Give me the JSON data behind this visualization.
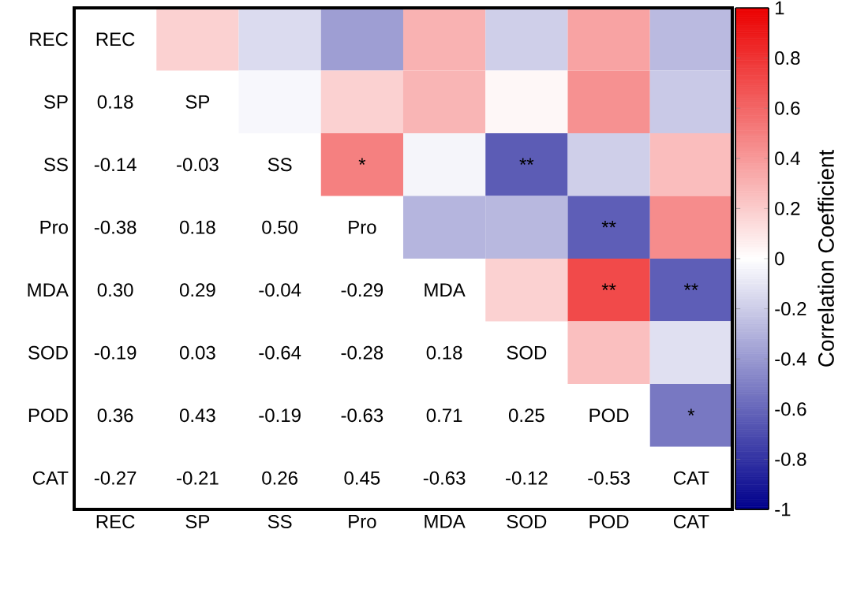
{
  "chart_data": {
    "type": "heatmap",
    "clabel": "Correlation Coefficient",
    "categories": [
      "REC",
      "SP",
      "SS",
      "Pro",
      "MDA",
      "SOD",
      "POD",
      "CAT"
    ],
    "y_categories": [
      "REC",
      "SP",
      "SS",
      "Pro",
      "MDA",
      "SOD",
      "POD",
      "CAT"
    ],
    "cells": [
      [
        null,
        0.18,
        -0.14,
        -0.38,
        0.3,
        -0.19,
        0.36,
        -0.27
      ],
      [
        null,
        null,
        -0.03,
        0.18,
        0.29,
        0.03,
        0.43,
        -0.21
      ],
      [
        null,
        null,
        null,
        0.5,
        -0.04,
        -0.64,
        -0.19,
        0.26
      ],
      [
        null,
        null,
        null,
        null,
        -0.29,
        -0.28,
        -0.63,
        0.45
      ],
      [
        null,
        null,
        null,
        null,
        null,
        0.18,
        0.71,
        -0.63
      ],
      [
        null,
        null,
        null,
        null,
        null,
        null,
        0.25,
        -0.12
      ],
      [
        null,
        null,
        null,
        null,
        null,
        null,
        null,
        -0.53
      ],
      [
        null,
        null,
        null,
        null,
        null,
        null,
        null,
        null
      ]
    ],
    "cell_labels": [
      [
        "REC",
        null,
        null,
        null,
        null,
        null,
        null,
        null
      ],
      [
        "0.18",
        "SP",
        null,
        null,
        null,
        null,
        null,
        null
      ],
      [
        "-0.14",
        "-0.03",
        "SS",
        "*",
        null,
        "**",
        null,
        null
      ],
      [
        "-0.38",
        "0.18",
        "0.50",
        "Pro",
        null,
        null,
        "**",
        null
      ],
      [
        "0.30",
        "0.29",
        "-0.04",
        "-0.29",
        "MDA",
        null,
        "**",
        "**"
      ],
      [
        "-0.19",
        "0.03",
        "-0.64",
        "-0.28",
        "0.18",
        "SOD",
        null,
        null
      ],
      [
        "0.36",
        "0.43",
        "-0.19",
        "-0.63",
        "0.71",
        "0.25",
        "POD",
        "*"
      ],
      [
        "-0.27",
        "-0.21",
        "0.26",
        "0.45",
        "-0.63",
        "-0.12",
        "-0.53",
        "CAT"
      ]
    ],
    "clim": [
      -1,
      1
    ],
    "cticks": [
      -1,
      -0.8,
      -0.6,
      -0.4,
      -0.2,
      0,
      0.2,
      0.4,
      0.6,
      0.8,
      1
    ]
  }
}
